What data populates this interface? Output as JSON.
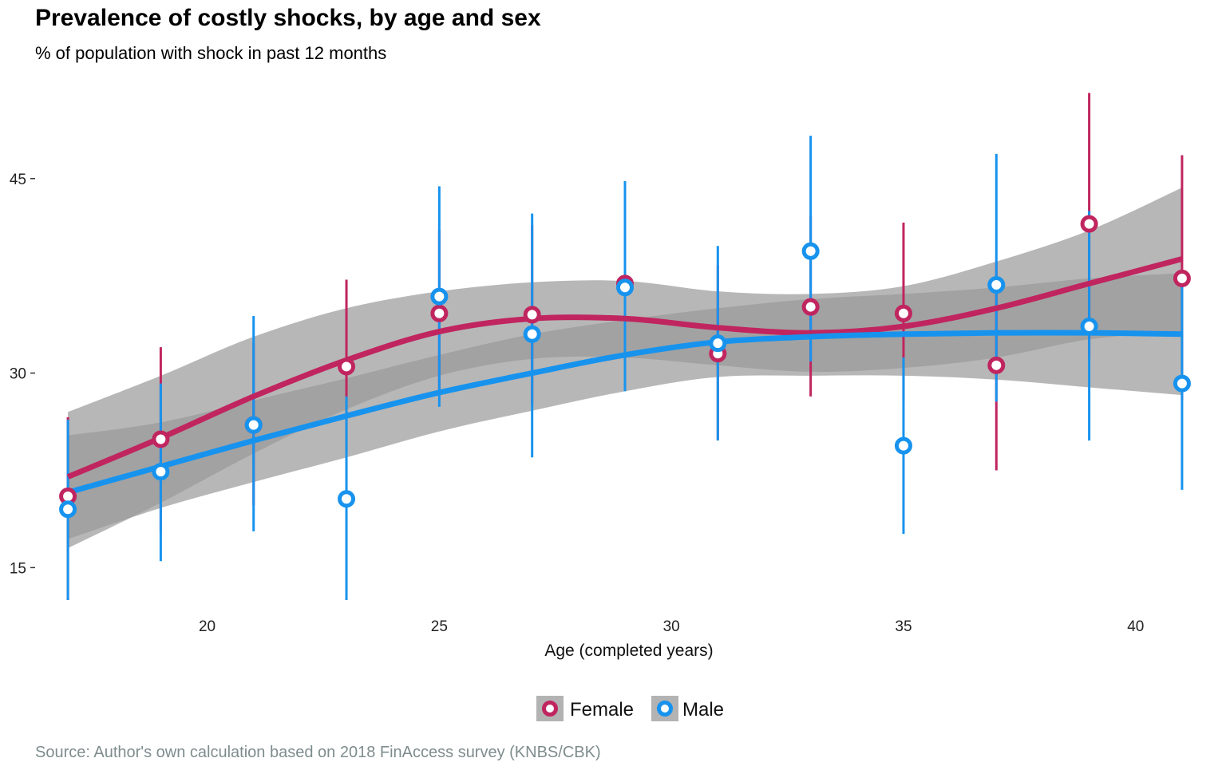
{
  "chart_data": {
    "type": "scatter",
    "title": "Prevalence of costly shocks, by age and sex",
    "subtitle": "% of population with shock in past 12 months",
    "xlabel": "Age (completed years)",
    "ylabel": "",
    "caption": "Source: Author's own calculation based on 2018 FinAccess survey (KNBS/CBK)",
    "xlim": [
      16.5,
      41.5
    ],
    "ylim": [
      12.5,
      52
    ],
    "x_ticks": [
      20,
      25,
      30,
      35,
      40
    ],
    "y_ticks": [
      15,
      30,
      45
    ],
    "legend_position": "bottom",
    "colors": {
      "Female": "#c0255f",
      "Male": "#1793ee",
      "band": "#999999"
    },
    "series": [
      {
        "name": "Female",
        "x": [
          17,
          19,
          21,
          23,
          25,
          27,
          29,
          31,
          33,
          35,
          37,
          39,
          41
        ],
        "y": [
          20.5,
          24.9,
          26.0,
          30.5,
          34.6,
          34.5,
          36.9,
          31.5,
          35.1,
          34.6,
          30.6,
          41.5,
          37.3
        ],
        "ci_low": [
          12.5,
          17.8,
          19.8,
          23.9,
          28.3,
          27.6,
          30.1,
          24.9,
          28.2,
          27.8,
          22.5,
          31.3,
          27.9
        ],
        "ci_high": [
          26.6,
          32.0,
          32.3,
          37.2,
          41.0,
          41.4,
          43.8,
          38.3,
          42.1,
          41.6,
          38.6,
          51.6,
          46.8
        ],
        "smooth_x": [
          17,
          19,
          21,
          23,
          25,
          27,
          29,
          31,
          33,
          35,
          37,
          39,
          41
        ],
        "smooth_y": [
          22.0,
          25.0,
          28.2,
          31.0,
          33.2,
          34.2,
          34.2,
          33.5,
          33.1,
          33.6,
          35.0,
          36.9,
          38.8
        ],
        "smooth_low": [
          16.5,
          20.0,
          23.8,
          27.2,
          29.8,
          31.1,
          31.2,
          30.6,
          30.1,
          30.4,
          31.2,
          32.6,
          33.2
        ],
        "smooth_high": [
          27.0,
          29.8,
          32.8,
          35.0,
          36.3,
          37.0,
          37.1,
          36.3,
          36.1,
          36.7,
          38.6,
          41.0,
          44.3
        ]
      },
      {
        "name": "Male",
        "x": [
          17,
          19,
          21,
          23,
          25,
          27,
          29,
          31,
          33,
          35,
          37,
          39,
          41
        ],
        "y": [
          19.5,
          22.4,
          26.0,
          20.3,
          35.9,
          33.0,
          36.6,
          32.3,
          39.4,
          24.4,
          36.8,
          33.6,
          29.2
        ],
        "ci_low": [
          12.5,
          15.5,
          17.8,
          12.5,
          27.4,
          23.5,
          28.6,
          24.8,
          30.9,
          17.6,
          27.8,
          24.8,
          21.0
        ],
        "ci_high": [
          26.4,
          29.2,
          34.4,
          28.2,
          44.4,
          42.3,
          44.8,
          39.8,
          48.3,
          31.2,
          46.9,
          42.5,
          37.6
        ],
        "smooth_x": [
          17,
          19,
          21,
          23,
          25,
          27,
          29,
          31,
          33,
          35,
          37,
          39,
          41
        ],
        "smooth_y": [
          20.8,
          22.8,
          24.8,
          26.7,
          28.5,
          30.0,
          31.4,
          32.4,
          32.8,
          33.0,
          33.1,
          33.1,
          33.0
        ],
        "smooth_low": [
          17.2,
          19.6,
          21.6,
          23.5,
          25.5,
          27.1,
          28.6,
          29.7,
          29.8,
          29.8,
          29.5,
          28.9,
          28.3
        ],
        "smooth_high": [
          25.2,
          26.2,
          27.9,
          29.6,
          31.4,
          33.0,
          34.1,
          35.0,
          35.7,
          36.1,
          36.6,
          37.3,
          37.7
        ]
      }
    ]
  }
}
